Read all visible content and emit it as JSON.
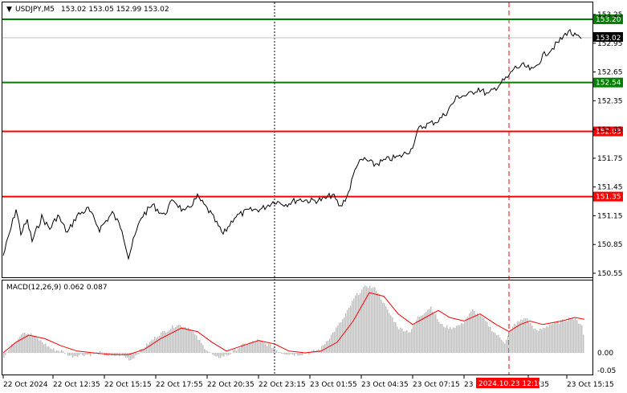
{
  "header": {
    "symbol_tf": "USDJPY,M5",
    "ohlc": "153.02 153.05 152.99 153.02"
  },
  "macd": {
    "label": "MACD(12,26,9) 0.062 0.087"
  },
  "price_scale": {
    "ticks": [
      "153.25",
      "152.95",
      "152.65",
      "152.35",
      "152.05",
      "151.75",
      "151.45",
      "151.15",
      "150.85",
      "150.55"
    ]
  },
  "macd_scale": {
    "ticks": [
      "0.00",
      "-0.05"
    ]
  },
  "levels": [
    {
      "label": "153.20",
      "color": "#008000",
      "value": 153.2
    },
    {
      "label": "152.54",
      "color": "#008000",
      "value": 152.54
    },
    {
      "label": "152.03",
      "color": "#ff0000",
      "value": 152.03
    },
    {
      "label": "151.35",
      "color": "#ff0000",
      "value": 151.35
    }
  ],
  "current_price": "153.02",
  "time_axis": {
    "labels": [
      "22 Oct 2024",
      "22 Oct 12:35",
      "22 Oct 15:15",
      "22 Oct 17:55",
      "22 Oct 20:35",
      "22 Oct 23:15",
      "23 Oct 01:55",
      "23 Oct 04:35",
      "23 Oct 07:15",
      "23",
      "12:35",
      "23 Oct 15:15"
    ],
    "cursor_label": "2024.10.23 12:10"
  },
  "colors": {
    "price_line": "#000000",
    "macd_hist": "#c0c0c0",
    "signal_line": "#ff0000",
    "support_green": "#008000",
    "resistance_red": "#ff0000",
    "cursor": "#ff0000"
  }
}
